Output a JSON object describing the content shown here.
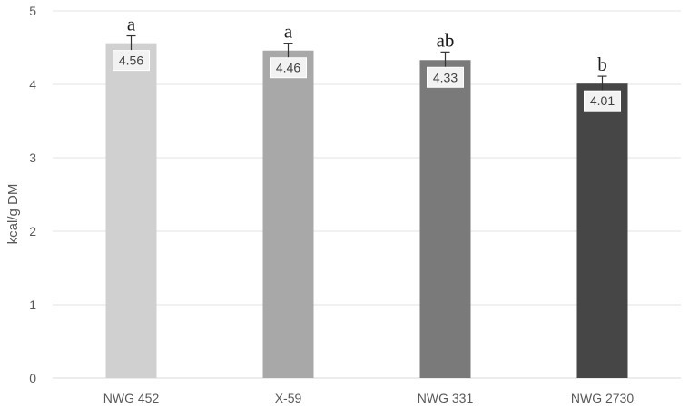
{
  "chart_data": {
    "type": "bar",
    "title": "",
    "xlabel": "",
    "ylabel": "kcal/g DM",
    "ylim": [
      0,
      5
    ],
    "yticks": [
      0,
      1,
      2,
      3,
      4,
      5
    ],
    "grid": true,
    "legend": "none",
    "categories": [
      "NWG 452",
      "X-59",
      "NWG 331",
      "NWG 2730"
    ],
    "values": [
      4.56,
      4.46,
      4.33,
      4.01
    ],
    "data_labels": [
      "4.56",
      "4.46",
      "4.33",
      "4.01"
    ],
    "error": [
      0.1,
      0.1,
      0.11,
      0.1
    ],
    "significance_letters": [
      "a",
      "a",
      "ab",
      "b"
    ],
    "bar_colors": [
      "#d0d0d0",
      "#a8a8a8",
      "#7a7a7a",
      "#464646"
    ]
  }
}
